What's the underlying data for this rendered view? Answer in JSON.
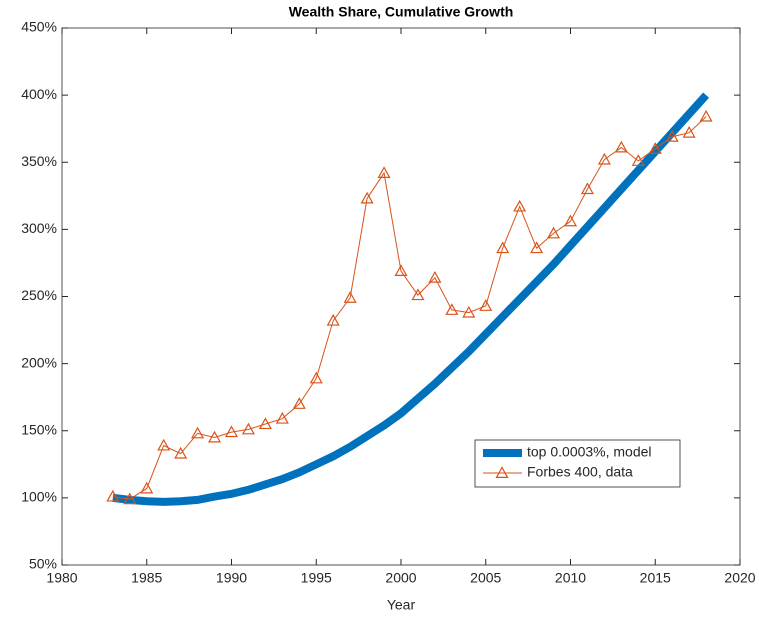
{
  "chart_data": {
    "type": "line",
    "title": "Wealth Share, Cumulative Growth",
    "x_label": "Year",
    "xlim": [
      1980,
      2020
    ],
    "xticks": [
      1980,
      1985,
      1990,
      1995,
      2000,
      2005,
      2010,
      2015,
      2020
    ],
    "ylim": [
      50,
      450
    ],
    "yticks": [
      {
        "value": 50,
        "label": "50%"
      },
      {
        "value": 100,
        "label": "100%"
      },
      {
        "value": 150,
        "label": "150%"
      },
      {
        "value": 200,
        "label": "200%"
      },
      {
        "value": 250,
        "label": "250%"
      },
      {
        "value": 300,
        "label": "300%"
      },
      {
        "value": 350,
        "label": "350%"
      },
      {
        "value": 400,
        "label": "400%"
      },
      {
        "value": 450,
        "label": "450%"
      }
    ],
    "x": [
      1983,
      1984,
      1985,
      1986,
      1987,
      1988,
      1989,
      1990,
      1991,
      1992,
      1993,
      1994,
      1995,
      1996,
      1997,
      1998,
      1999,
      2000,
      2001,
      2002,
      2003,
      2004,
      2005,
      2006,
      2007,
      2008,
      2009,
      2010,
      2011,
      2012,
      2013,
      2014,
      2015,
      2016,
      2017,
      2018
    ],
    "series": [
      {
        "name": "top 0.0003%, model",
        "color": "#0072bd",
        "style": "thick",
        "values": [
          100,
          98.5,
          97.5,
          97,
          97.5,
          98.5,
          101,
          103,
          106,
          110,
          114,
          119,
          125,
          131,
          138,
          146,
          154,
          163,
          174,
          185,
          197,
          209,
          222,
          235,
          248,
          261,
          274,
          288,
          302,
          316,
          330,
          344,
          358,
          372,
          386,
          400
        ]
      },
      {
        "name": "Forbes 400, data",
        "color": "#d95319",
        "style": "triangle",
        "values": [
          101,
          99,
          107,
          139,
          133,
          148,
          145,
          149,
          151,
          155,
          159,
          170,
          189,
          232,
          249,
          323,
          342,
          269,
          251,
          264,
          240,
          238,
          243,
          286,
          317,
          286,
          297,
          306,
          330,
          352,
          361,
          351,
          360,
          369,
          372,
          384
        ]
      }
    ],
    "legend": "inside-lower-right"
  }
}
